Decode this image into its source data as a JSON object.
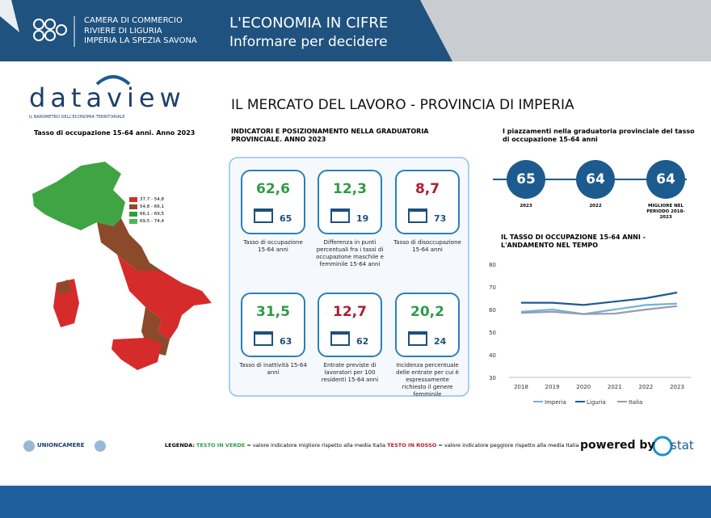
{
  "header": {
    "org": [
      "CAMERA DI COMMERCIO",
      "RIVIERE DI LIGURIA",
      "IMPERIA LA SPEZIA SAVONA"
    ],
    "title": "L'ECONOMIA IN CIFRE",
    "subtitle": "Informare per decidere"
  },
  "logo": {
    "name": "dataview",
    "tagline": "IL BAROMETRO DELL'ECONOMIA TERRITORIALE"
  },
  "page_title": "IL MERCATO DEL LAVORO - PROVINCIA DI IMPERIA",
  "map": {
    "title": "Tasso di occupazione 15-64 anni. Anno 2023",
    "legend": [
      {
        "label": "37,7 - 54,8",
        "color": "#d62b2b"
      },
      {
        "label": "54,8 - 66,1",
        "color": "#8b4a2b"
      },
      {
        "label": "66,1 - 69,5",
        "color": "#2f9e3f"
      },
      {
        "label": "69,5 - 74,4",
        "color": "#46b84f"
      }
    ]
  },
  "indicators": {
    "title": "INDICATORI E POSIZIONAMENTO NELLA GRADUATORIA PROVINCIALE. ANNO 2023",
    "cards": [
      {
        "value": "62,6",
        "rank": "65",
        "label": "Tasso di occupazione 15-64 anni",
        "color": "#2e9b45"
      },
      {
        "value": "12,3",
        "rank": "19",
        "label": "Differenza in punti percentuali fra i tassi di occupazione maschile e femminile 15-64 anni",
        "color": "#2e9b45"
      },
      {
        "value": "8,7",
        "rank": "73",
        "label": "Tasso di disoccupazione 15-64 anni",
        "color": "#b01c2e"
      },
      {
        "value": "31,5",
        "rank": "63",
        "label": "Tasso di inattività 15-64 anni",
        "color": "#2e9b45"
      },
      {
        "value": "12,7",
        "rank": "62",
        "label": "Entrate previste di lavoratori per 100 residenti 15-64 anni",
        "color": "#b01c2e"
      },
      {
        "value": "20,2",
        "rank": "24",
        "label": "Incidenza percentuale delle entrate per cui è espressamente richiesto il genere femminile",
        "color": "#2e9b45"
      }
    ]
  },
  "ranking": {
    "title": "I piazzamenti nella graduatoria provinciale del tasso di occupazione 15-64 anni",
    "items": [
      {
        "rank": "65",
        "label": "2023"
      },
      {
        "rank": "64",
        "label": "2022"
      },
      {
        "rank": "64",
        "label": "MIGLIORE NEL PERIODO 2018-2023"
      }
    ]
  },
  "chart_data": {
    "type": "line",
    "title": "IL TASSO DI OCCUPAZIONE 15-64 ANNI - L'ANDAMENTO NEL TEMPO",
    "categories": [
      "2018",
      "2019",
      "2020",
      "2021",
      "2022",
      "2023"
    ],
    "ylim": [
      30,
      80
    ],
    "yticks": [
      30,
      40,
      50,
      60,
      70,
      80
    ],
    "series": [
      {
        "name": "Imperia",
        "color": "#6fb3e0",
        "values": [
          59,
          60,
          58,
          60,
          62,
          62.6
        ]
      },
      {
        "name": "Liguria",
        "color": "#1d5b8f",
        "values": [
          63,
          63,
          62,
          63.5,
          65,
          67.5
        ]
      },
      {
        "name": "Italia",
        "color": "#9a9aa8",
        "values": [
          58.5,
          59,
          58,
          58.2,
          60,
          61.5
        ]
      }
    ]
  },
  "footer": {
    "unioncamere": "UNIONCAMERE",
    "legend_label": "LEGENDA:",
    "green_text": "TESTO IN VERDE",
    "green_desc": "= valore indicatore migliore rispetto alla media Italia",
    "red_text": "TESTO IN ROSSO",
    "red_desc": "= valore indicatore peggiore rispetto alla media Italia",
    "powered": "powered by",
    "brand": "stat"
  }
}
